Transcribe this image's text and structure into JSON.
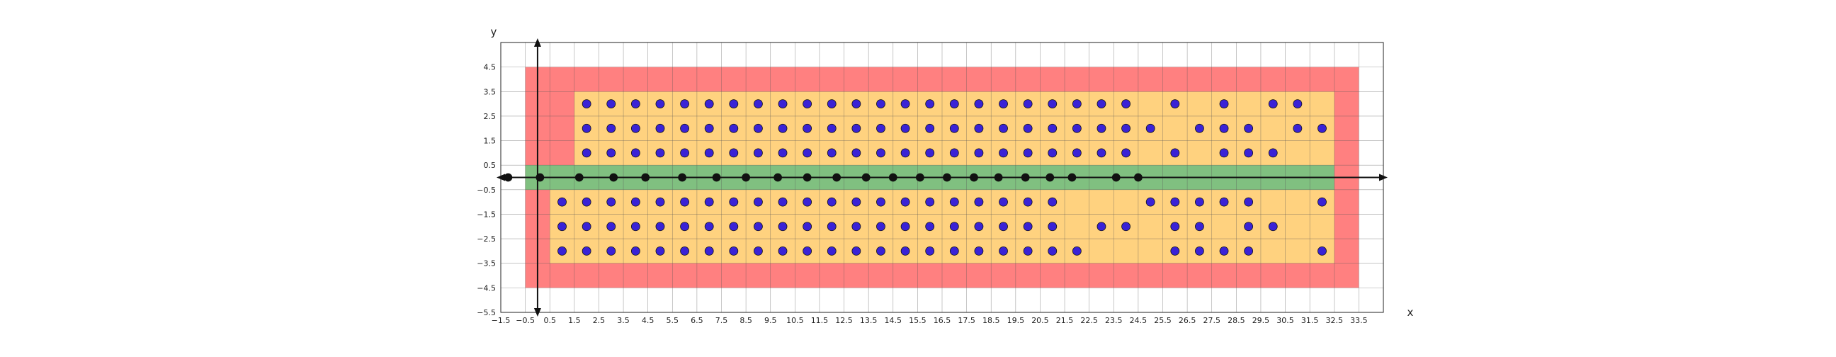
{
  "chart_data": {
    "type": "scatter",
    "title": "",
    "xlabel": "x",
    "ylabel": "y",
    "xlim": [
      -1.5,
      34.5
    ],
    "ylim": [
      -5.5,
      5.5
    ],
    "grid": true,
    "xticks": [
      -1.5,
      -0.5,
      0.5,
      1.5,
      2.5,
      3.5,
      4.5,
      5.5,
      6.5,
      7.5,
      8.5,
      9.5,
      10.5,
      11.5,
      12.5,
      13.5,
      14.5,
      15.5,
      16.5,
      17.5,
      18.5,
      19.5,
      20.5,
      21.5,
      22.5,
      23.5,
      24.5,
      25.5,
      26.5,
      27.5,
      28.5,
      29.5,
      30.5,
      31.5,
      32.5,
      33.5
    ],
    "xtick_labels": [
      "−1.5",
      "−0.5",
      "0.5",
      "1.5",
      "2.5",
      "3.5",
      "4.5",
      "5.5",
      "6.5",
      "7.5",
      "8.5",
      "9.5",
      "10.5",
      "11.5",
      "12.5",
      "13.5",
      "14.5",
      "15.5",
      "16.5",
      "17.5",
      "18.5",
      "19.5",
      "20.5",
      "21.5",
      "22.5",
      "23.5",
      "24.5",
      "25.5",
      "26.5",
      "27.5",
      "28.5",
      "29.5",
      "30.5",
      "31.5",
      "32.5",
      "33.5"
    ],
    "yticks": [
      4.5,
      3.5,
      2.5,
      1.5,
      0.5,
      -0.5,
      -1.5,
      -2.5,
      -3.5,
      -4.5,
      -5.5
    ],
    "ytick_labels": [
      "4.5",
      "3.5",
      "2.5",
      "1.5",
      "0.5",
      "−0.5",
      "−1.5",
      "−2.5",
      "−3.5",
      "−4.5",
      "−5.5"
    ],
    "regions": [
      {
        "name": "outer-red",
        "color": "#ff8080",
        "x": [
          -0.5,
          33.5
        ],
        "y": [
          -4.5,
          4.5
        ]
      },
      {
        "name": "upper-orange",
        "color": "#ffd27f",
        "x": [
          1.5,
          32.5
        ],
        "y": [
          0.5,
          3.5
        ]
      },
      {
        "name": "lower-orange",
        "color": "#ffd27f",
        "x": [
          0.5,
          32.5
        ],
        "y": [
          -3.5,
          -0.5
        ]
      },
      {
        "name": "center-green",
        "color": "#80c080",
        "x": [
          -0.5,
          32.5
        ],
        "y": [
          -0.5,
          0.5
        ]
      }
    ],
    "series": [
      {
        "color": "#3a22d6",
        "points": [
          [
            2,
            3
          ],
          [
            3,
            3
          ],
          [
            4,
            3
          ],
          [
            5,
            3
          ],
          [
            6,
            3
          ],
          [
            7,
            3
          ],
          [
            8,
            3
          ],
          [
            9,
            3
          ],
          [
            10,
            3
          ],
          [
            11,
            3
          ],
          [
            12,
            3
          ],
          [
            13,
            3
          ],
          [
            14,
            3
          ],
          [
            15,
            3
          ],
          [
            16,
            3
          ],
          [
            17,
            3
          ],
          [
            18,
            3
          ],
          [
            19,
            3
          ],
          [
            20,
            3
          ],
          [
            21,
            3
          ],
          [
            22,
            3
          ],
          [
            23,
            3
          ],
          [
            24,
            3
          ],
          [
            26,
            3
          ],
          [
            28,
            3
          ],
          [
            30,
            3
          ],
          [
            31,
            3
          ],
          [
            2,
            2
          ],
          [
            3,
            2
          ],
          [
            4,
            2
          ],
          [
            5,
            2
          ],
          [
            6,
            2
          ],
          [
            7,
            2
          ],
          [
            8,
            2
          ],
          [
            9,
            2
          ],
          [
            10,
            2
          ],
          [
            11,
            2
          ],
          [
            12,
            2
          ],
          [
            13,
            2
          ],
          [
            14,
            2
          ],
          [
            15,
            2
          ],
          [
            16,
            2
          ],
          [
            17,
            2
          ],
          [
            18,
            2
          ],
          [
            19,
            2
          ],
          [
            20,
            2
          ],
          [
            21,
            2
          ],
          [
            22,
            2
          ],
          [
            23,
            2
          ],
          [
            24,
            2
          ],
          [
            25,
            2
          ],
          [
            27,
            2
          ],
          [
            28,
            2
          ],
          [
            29,
            2
          ],
          [
            31,
            2
          ],
          [
            32,
            2
          ],
          [
            2,
            1
          ],
          [
            3,
            1
          ],
          [
            4,
            1
          ],
          [
            5,
            1
          ],
          [
            6,
            1
          ],
          [
            7,
            1
          ],
          [
            8,
            1
          ],
          [
            9,
            1
          ],
          [
            10,
            1
          ],
          [
            11,
            1
          ],
          [
            12,
            1
          ],
          [
            13,
            1
          ],
          [
            14,
            1
          ],
          [
            15,
            1
          ],
          [
            16,
            1
          ],
          [
            17,
            1
          ],
          [
            18,
            1
          ],
          [
            19,
            1
          ],
          [
            20,
            1
          ],
          [
            21,
            1
          ],
          [
            22,
            1
          ],
          [
            23,
            1
          ],
          [
            24,
            1
          ],
          [
            26,
            1
          ],
          [
            28,
            1
          ],
          [
            29,
            1
          ],
          [
            30,
            1
          ],
          [
            1,
            -1
          ],
          [
            2,
            -1
          ],
          [
            3,
            -1
          ],
          [
            4,
            -1
          ],
          [
            5,
            -1
          ],
          [
            6,
            -1
          ],
          [
            7,
            -1
          ],
          [
            8,
            -1
          ],
          [
            9,
            -1
          ],
          [
            10,
            -1
          ],
          [
            11,
            -1
          ],
          [
            12,
            -1
          ],
          [
            13,
            -1
          ],
          [
            14,
            -1
          ],
          [
            15,
            -1
          ],
          [
            16,
            -1
          ],
          [
            17,
            -1
          ],
          [
            18,
            -1
          ],
          [
            19,
            -1
          ],
          [
            20,
            -1
          ],
          [
            21,
            -1
          ],
          [
            25,
            -1
          ],
          [
            26,
            -1
          ],
          [
            27,
            -1
          ],
          [
            28,
            -1
          ],
          [
            29,
            -1
          ],
          [
            32,
            -1
          ],
          [
            1,
            -2
          ],
          [
            2,
            -2
          ],
          [
            3,
            -2
          ],
          [
            4,
            -2
          ],
          [
            5,
            -2
          ],
          [
            6,
            -2
          ],
          [
            7,
            -2
          ],
          [
            8,
            -2
          ],
          [
            9,
            -2
          ],
          [
            10,
            -2
          ],
          [
            11,
            -2
          ],
          [
            12,
            -2
          ],
          [
            13,
            -2
          ],
          [
            14,
            -2
          ],
          [
            15,
            -2
          ],
          [
            16,
            -2
          ],
          [
            17,
            -2
          ],
          [
            18,
            -2
          ],
          [
            19,
            -2
          ],
          [
            20,
            -2
          ],
          [
            21,
            -2
          ],
          [
            23,
            -2
          ],
          [
            24,
            -2
          ],
          [
            26,
            -2
          ],
          [
            27,
            -2
          ],
          [
            29,
            -2
          ],
          [
            30,
            -2
          ],
          [
            1,
            -3
          ],
          [
            2,
            -3
          ],
          [
            3,
            -3
          ],
          [
            4,
            -3
          ],
          [
            5,
            -3
          ],
          [
            6,
            -3
          ],
          [
            7,
            -3
          ],
          [
            8,
            -3
          ],
          [
            9,
            -3
          ],
          [
            10,
            -3
          ],
          [
            11,
            -3
          ],
          [
            12,
            -3
          ],
          [
            13,
            -3
          ],
          [
            14,
            -3
          ],
          [
            15,
            -3
          ],
          [
            16,
            -3
          ],
          [
            17,
            -3
          ],
          [
            18,
            -3
          ],
          [
            19,
            -3
          ],
          [
            20,
            -3
          ],
          [
            21,
            -3
          ],
          [
            22,
            -3
          ],
          [
            26,
            -3
          ],
          [
            27,
            -3
          ],
          [
            28,
            -3
          ],
          [
            29,
            -3
          ],
          [
            32,
            -3
          ]
        ]
      },
      {
        "color": "#111111",
        "points": [
          [
            -1.2,
            0
          ],
          [
            0.1,
            0
          ],
          [
            1.7,
            0
          ],
          [
            3.1,
            0
          ],
          [
            4.4,
            0
          ],
          [
            5.9,
            0
          ],
          [
            7.3,
            0
          ],
          [
            8.5,
            0
          ],
          [
            9.8,
            0
          ],
          [
            11,
            0
          ],
          [
            12.2,
            0
          ],
          [
            13.4,
            0
          ],
          [
            14.5,
            0
          ],
          [
            15.6,
            0
          ],
          [
            16.7,
            0
          ],
          [
            17.8,
            0
          ],
          [
            18.8,
            0
          ],
          [
            19.9,
            0
          ],
          [
            20.9,
            0
          ],
          [
            21.8,
            0
          ],
          [
            23.6,
            0
          ],
          [
            24.5,
            0
          ]
        ]
      }
    ]
  }
}
